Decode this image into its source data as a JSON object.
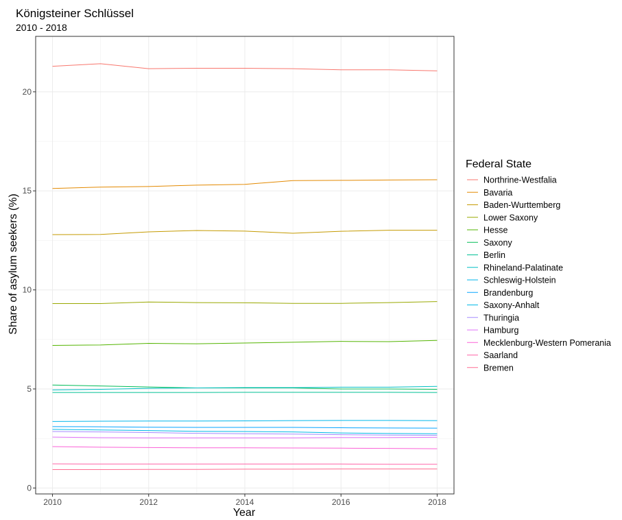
{
  "chart_data": {
    "type": "line",
    "title": "Königsteiner Schlüssel",
    "subtitle": "2010 - 2018",
    "xlabel": "Year",
    "ylabel": "Share of asylum seekers (%)",
    "xlim": [
      2009.65,
      2018.35
    ],
    "ylim": [
      -0.3,
      22.8
    ],
    "x_ticks": [
      2010,
      2012,
      2014,
      2016,
      2018
    ],
    "y_ticks": [
      0,
      5,
      10,
      15,
      20
    ],
    "grid": true,
    "legend_title": "Federal State",
    "legend_position": "right",
    "x": [
      2010,
      2011,
      2012,
      2013,
      2014,
      2015,
      2016,
      2017,
      2018
    ],
    "series": [
      {
        "name": "Northrine-Westfalia",
        "color": "#F8766D",
        "values": [
          21.29,
          21.42,
          21.17,
          21.19,
          21.19,
          21.17,
          21.11,
          21.11,
          21.06
        ]
      },
      {
        "name": "Bavaria",
        "color": "#E38900",
        "values": [
          15.12,
          15.19,
          15.22,
          15.29,
          15.33,
          15.52,
          15.53,
          15.55,
          15.56
        ]
      },
      {
        "name": "Baden-Wurttemberg",
        "color": "#C49A00",
        "values": [
          12.79,
          12.8,
          12.93,
          13.0,
          12.97,
          12.86,
          12.96,
          13.01,
          13.01
        ]
      },
      {
        "name": "Lower Saxony",
        "color": "#99A800",
        "values": [
          9.31,
          9.31,
          9.39,
          9.36,
          9.35,
          9.32,
          9.32,
          9.36,
          9.41
        ]
      },
      {
        "name": "Hesse",
        "color": "#53B400",
        "values": [
          7.2,
          7.22,
          7.3,
          7.28,
          7.32,
          7.36,
          7.4,
          7.39,
          7.45
        ]
      },
      {
        "name": "Saxony",
        "color": "#00BC56",
        "values": [
          5.2,
          5.15,
          5.1,
          5.05,
          5.05,
          5.05,
          5.0,
          5.0,
          4.98
        ]
      },
      {
        "name": "Berlin",
        "color": "#00C094",
        "values": [
          4.82,
          4.82,
          4.82,
          4.82,
          4.83,
          4.83,
          4.83,
          4.83,
          4.82
        ]
      },
      {
        "name": "Rhineland-Palatinate",
        "color": "#00BFC4",
        "values": [
          4.95,
          4.98,
          5.03,
          5.05,
          5.07,
          5.07,
          5.09,
          5.09,
          5.13
        ]
      },
      {
        "name": "Schleswig-Holstein",
        "color": "#00B6EB",
        "values": [
          3.36,
          3.37,
          3.38,
          3.38,
          3.39,
          3.4,
          3.41,
          3.41,
          3.4
        ]
      },
      {
        "name": "Brandenburg",
        "color": "#06A4FF",
        "values": [
          3.1,
          3.09,
          3.07,
          3.06,
          3.06,
          3.06,
          3.04,
          3.03,
          3.02
        ]
      },
      {
        "name": "Saxony-Anhalt",
        "color": "#00B8E7",
        "values": [
          2.96,
          2.93,
          2.9,
          2.86,
          2.85,
          2.83,
          2.78,
          2.75,
          2.74
        ]
      },
      {
        "name": "Thuringia",
        "color": "#A58AFF",
        "values": [
          2.85,
          2.83,
          2.8,
          2.76,
          2.74,
          2.72,
          2.69,
          2.67,
          2.66
        ]
      },
      {
        "name": "Hamburg",
        "color": "#DF70F8",
        "values": [
          2.57,
          2.54,
          2.53,
          2.53,
          2.53,
          2.53,
          2.55,
          2.55,
          2.56
        ]
      },
      {
        "name": "Mecklenburg-Western Pomerania",
        "color": "#FB61D7",
        "values": [
          2.09,
          2.06,
          2.04,
          2.03,
          2.03,
          2.02,
          2.01,
          2.0,
          1.98
        ]
      },
      {
        "name": "Saarland",
        "color": "#FF66A8",
        "values": [
          1.22,
          1.21,
          1.21,
          1.21,
          1.21,
          1.21,
          1.21,
          1.2,
          1.2
        ]
      },
      {
        "name": "Bremen",
        "color": "#FF6C91",
        "values": [
          0.93,
          0.93,
          0.94,
          0.94,
          0.95,
          0.95,
          0.96,
          0.96,
          0.96
        ]
      }
    ]
  }
}
